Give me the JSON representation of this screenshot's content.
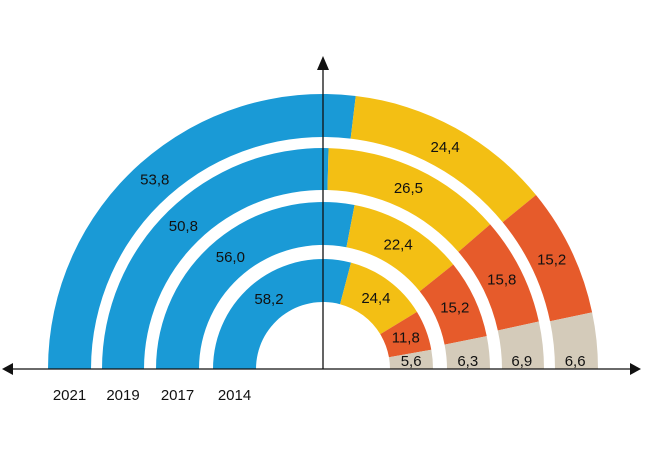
{
  "chart_data": {
    "type": "pie",
    "subtype": "nested semicircle donut",
    "categories": [
      "2021",
      "2019",
      "2017",
      "2014"
    ],
    "segment_colors": [
      "#1a9ad6",
      "#f3bf14",
      "#e65b2b",
      "#d4cbba"
    ],
    "series": [
      {
        "year": "2021",
        "values": [
          53.8,
          24.4,
          15.2,
          6.6
        ],
        "labels": [
          "53,8",
          "24,4",
          "15,2",
          "6,6"
        ]
      },
      {
        "year": "2019",
        "values": [
          50.8,
          26.5,
          15.8,
          6.9
        ],
        "labels": [
          "50,8",
          "26,5",
          "15,8",
          "6,9"
        ]
      },
      {
        "year": "2017",
        "values": [
          56.0,
          22.4,
          15.2,
          6.3
        ],
        "labels": [
          "56,0",
          "22,4",
          "15,2",
          "6,3"
        ]
      },
      {
        "year": "2014",
        "values": [
          58.2,
          24.4,
          11.8,
          5.6
        ],
        "labels": [
          "58,2",
          "24,4",
          "11,8",
          "5,6"
        ]
      }
    ],
    "title": "",
    "xlabel": "",
    "ylabel": "",
    "grid": false,
    "legend": "none"
  }
}
